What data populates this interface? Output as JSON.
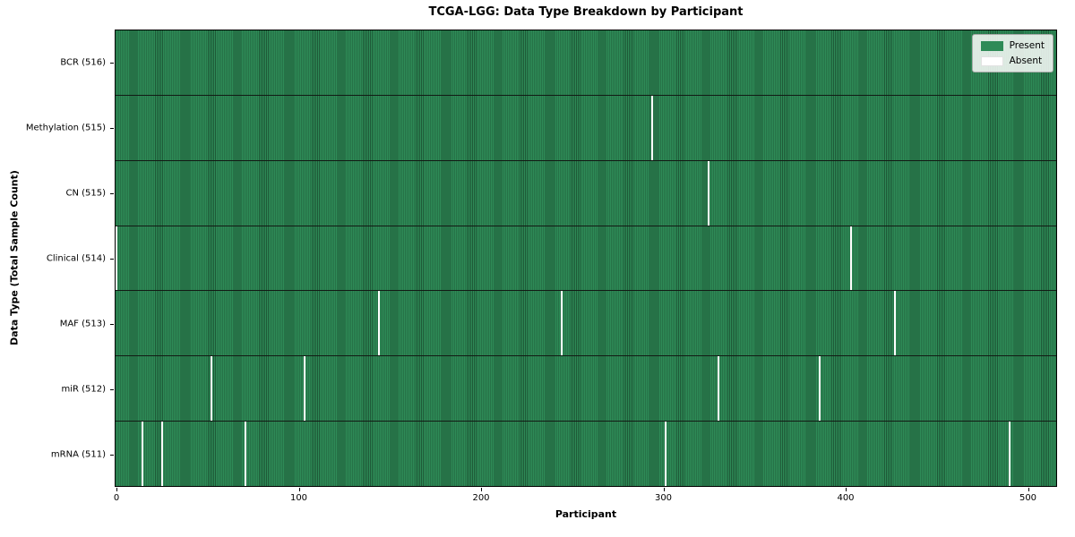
{
  "colors": {
    "present": "#2e8b57",
    "present_edge": "#1e5937",
    "absent": "#ffffff",
    "row_divider": "#121a14",
    "axis": "#000000"
  },
  "chart_data": {
    "type": "heatmap",
    "title": "TCGA-LGG: Data Type Breakdown by Participant",
    "xlabel": "Participant",
    "ylabel": "Data Type (Total Sample Count)",
    "legend": [
      "Present",
      "Absent"
    ],
    "legend_position": "upper right",
    "n_participants": 516,
    "x_ticks": [
      0,
      100,
      200,
      300,
      400,
      500
    ],
    "xlim": [
      0,
      516
    ],
    "grid": false,
    "rows": [
      {
        "label": "BCR (516)",
        "data_type": "BCR",
        "total_sample_count": 516,
        "absent_participants": []
      },
      {
        "label": "Methylation (515)",
        "data_type": "Methylation",
        "total_sample_count": 515,
        "absent_participants": [
          294
        ]
      },
      {
        "label": "CN (515)",
        "data_type": "CN",
        "total_sample_count": 515,
        "absent_participants": [
          325
        ]
      },
      {
        "label": "Clinical (514)",
        "data_type": "Clinical",
        "total_sample_count": 514,
        "absent_participants": [
          0,
          403
        ]
      },
      {
        "label": "MAF (513)",
        "data_type": "MAF",
        "total_sample_count": 513,
        "absent_participants": [
          144,
          244,
          427
        ]
      },
      {
        "label": "miR (512)",
        "data_type": "miR",
        "total_sample_count": 512,
        "absent_participants": [
          52,
          103,
          330,
          386
        ]
      },
      {
        "label": "mRNA (511)",
        "data_type": "mRNA",
        "total_sample_count": 511,
        "absent_participants": [
          14,
          25,
          71,
          301,
          490
        ]
      }
    ]
  }
}
